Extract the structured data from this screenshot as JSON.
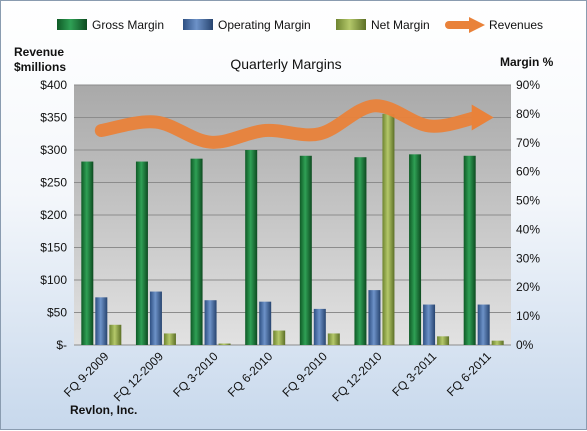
{
  "chart_data": {
    "type": "bar",
    "title": "Quarterly Margins",
    "company": "Revlon, Inc.",
    "left_axis_label": [
      "Revenue",
      "$millions"
    ],
    "right_axis_label": "Margin %",
    "left_ylim": [
      0,
      400
    ],
    "right_ylim": [
      0,
      90
    ],
    "left_ticks": [
      "$-",
      "$50",
      "$100",
      "$150",
      "$200",
      "$250",
      "$300",
      "$350",
      "$400"
    ],
    "right_ticks": [
      "0%",
      "10%",
      "20%",
      "30%",
      "40%",
      "50%",
      "60%",
      "70%",
      "80%",
      "90%"
    ],
    "categories": [
      "FQ 9-2009",
      "FQ 12-2009",
      "FQ 3-2010",
      "FQ 6-2010",
      "FQ 9-2010",
      "FQ 12-2010",
      "FQ 3-2011",
      "FQ 6-2011"
    ],
    "series": [
      {
        "name": "Gross Margin",
        "axis": "right",
        "type": "bar",
        "color": "#1e7a3c",
        "values": [
          63.5,
          63.5,
          64.5,
          67.5,
          65.5,
          65,
          66,
          65.5
        ]
      },
      {
        "name": "Operating Margin",
        "axis": "right",
        "type": "bar",
        "color": "#4a6fa5",
        "values": [
          16.5,
          18.5,
          15.5,
          15,
          12.5,
          19,
          14,
          14
        ]
      },
      {
        "name": "Net Margin",
        "axis": "right",
        "type": "bar",
        "color": "#93a84e",
        "values": [
          7,
          4,
          0.5,
          5,
          4,
          80,
          3,
          1.5
        ]
      },
      {
        "name": "Revenues",
        "axis": "left",
        "type": "line",
        "color": "#e9823a",
        "values": [
          330,
          343,
          312,
          330,
          325,
          368,
          337,
          350
        ]
      }
    ],
    "grid": true,
    "legend": "top"
  }
}
